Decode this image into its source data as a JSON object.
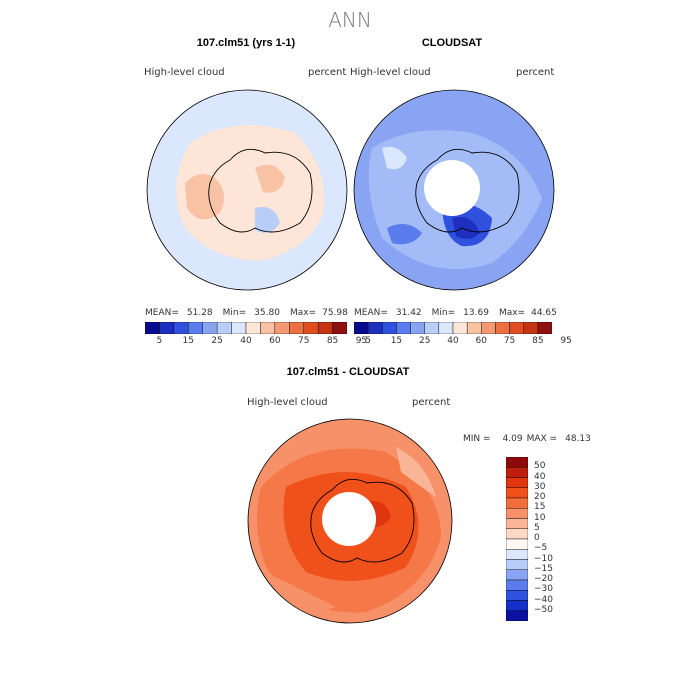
{
  "page_title": "ANN",
  "panels": [
    {
      "title": "107.clm51 (yrs 1-1)",
      "variable": "High-level cloud",
      "units": "percent",
      "stats": {
        "mean_label": "MEAN=",
        "mean": "51.28",
        "min_label": "Min=",
        "min": "35.80",
        "max_label": "Max=",
        "max": "75.98"
      },
      "colorbar": {
        "colors": [
          "#0a0a8c",
          "#1e2fbf",
          "#3050de",
          "#5a7cec",
          "#8aa4f4",
          "#b8cdf8",
          "#dbe7fc",
          "#fde6d8",
          "#f8c2a4",
          "#f29a74",
          "#ec7043",
          "#e04d20",
          "#c43512",
          "#8e1010"
        ],
        "labels": [
          "5",
          "15",
          "25",
          "40",
          "60",
          "75",
          "85",
          "95"
        ]
      }
    },
    {
      "title": "CLOUDSAT",
      "variable": "High-level cloud",
      "units": "percent",
      "stats": {
        "mean_label": "MEAN=",
        "mean": "31.42",
        "min_label": "Min=",
        "min": "13.69",
        "max_label": "Max=",
        "max": "44.65"
      },
      "colorbar": {
        "colors": [
          "#0a0a8c",
          "#1e2fbf",
          "#3050de",
          "#5a7cec",
          "#8aa4f4",
          "#b8cdf8",
          "#dbe7fc",
          "#fde6d8",
          "#f8c2a4",
          "#f29a74",
          "#ec7043",
          "#e04d20",
          "#c43512",
          "#8e1010"
        ],
        "labels": [
          "5",
          "15",
          "25",
          "40",
          "60",
          "75",
          "85",
          "95"
        ]
      }
    }
  ],
  "difference": {
    "title": "107.clm51 - CLOUDSAT",
    "variable": "High-level cloud",
    "units": "percent",
    "stats": {
      "min_label": "MIN =",
      "min": "4.09",
      "max_label": "MAX =",
      "max": "48.13"
    },
    "colorbar": {
      "colors": [
        "#8e0a0a",
        "#bf1e0e",
        "#e0350e",
        "#f0501a",
        "#f46e3c",
        "#f7916a",
        "#fab596",
        "#fdd8c6",
        "#fff8f2",
        "#dbe7fc",
        "#b8cdf8",
        "#8aa4f4",
        "#5a7cec",
        "#3050de",
        "#1530c8",
        "#0a10a0"
      ],
      "labels": [
        "50",
        "40",
        "30",
        "20",
        "15",
        "10",
        "5",
        "0",
        "−5",
        "−10",
        "−15",
        "−20",
        "−30",
        "−40",
        "−50"
      ]
    }
  }
}
